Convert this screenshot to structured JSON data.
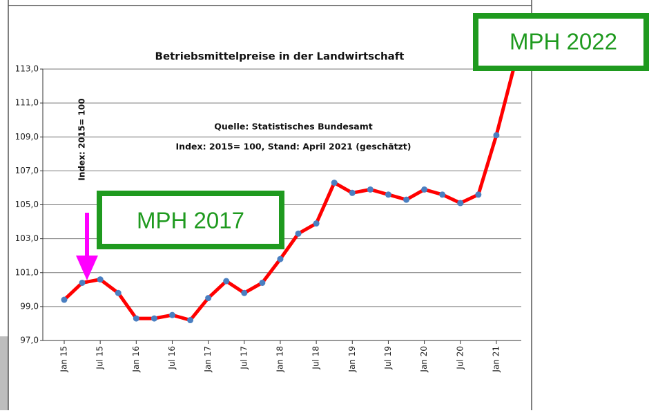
{
  "chart_data": {
    "type": "line",
    "title": "Betriebsmittelpreise in der Landwirtschaft",
    "y_label": "Index: 2015= 100",
    "annotations": [
      "Quelle: Statistisches Bundesamt",
      "Index: 2015= 100, Stand:  April 2021 (geschätzt)",
      "MPH 2017",
      "MPH 2022"
    ],
    "categories": [
      "Jan 15",
      null,
      "Jul 15",
      null,
      "Jan 16",
      null,
      "Jul 16",
      null,
      "Jan 17",
      null,
      "Jul 17",
      null,
      "Jan 18",
      null,
      "Jul 18",
      null,
      "Jan 19",
      null,
      "Jul 19",
      null,
      "Jan 20",
      null,
      "Jul 20",
      null,
      "Jan 21",
      null
    ],
    "series": [
      {
        "name": "Betriebsmittelpreise",
        "color": "#ff0000",
        "marker_color": "#4a7fc1",
        "values": [
          99.4,
          100.4,
          100.6,
          99.8,
          98.3,
          98.3,
          98.5,
          98.2,
          99.5,
          100.5,
          99.8,
          100.4,
          101.8,
          103.3,
          103.9,
          106.3,
          105.7,
          105.9,
          105.6,
          105.3,
          105.9,
          105.6,
          105.1,
          105.6,
          109.1,
          113.2
        ]
      }
    ],
    "ylim": [
      97,
      113
    ],
    "yticks": [
      {
        "value": 97,
        "label": "97,0"
      },
      {
        "value": 99,
        "label": "99,0"
      },
      {
        "value": 101,
        "label": "101,0"
      },
      {
        "value": 103,
        "label": "103,0"
      },
      {
        "value": 105,
        "label": "105,0"
      },
      {
        "value": 107,
        "label": "107,0"
      },
      {
        "value": 109,
        "label": "109,0"
      },
      {
        "value": 111,
        "label": "111,0"
      },
      {
        "value": 113,
        "label": "113,0"
      }
    ],
    "grid": true
  }
}
